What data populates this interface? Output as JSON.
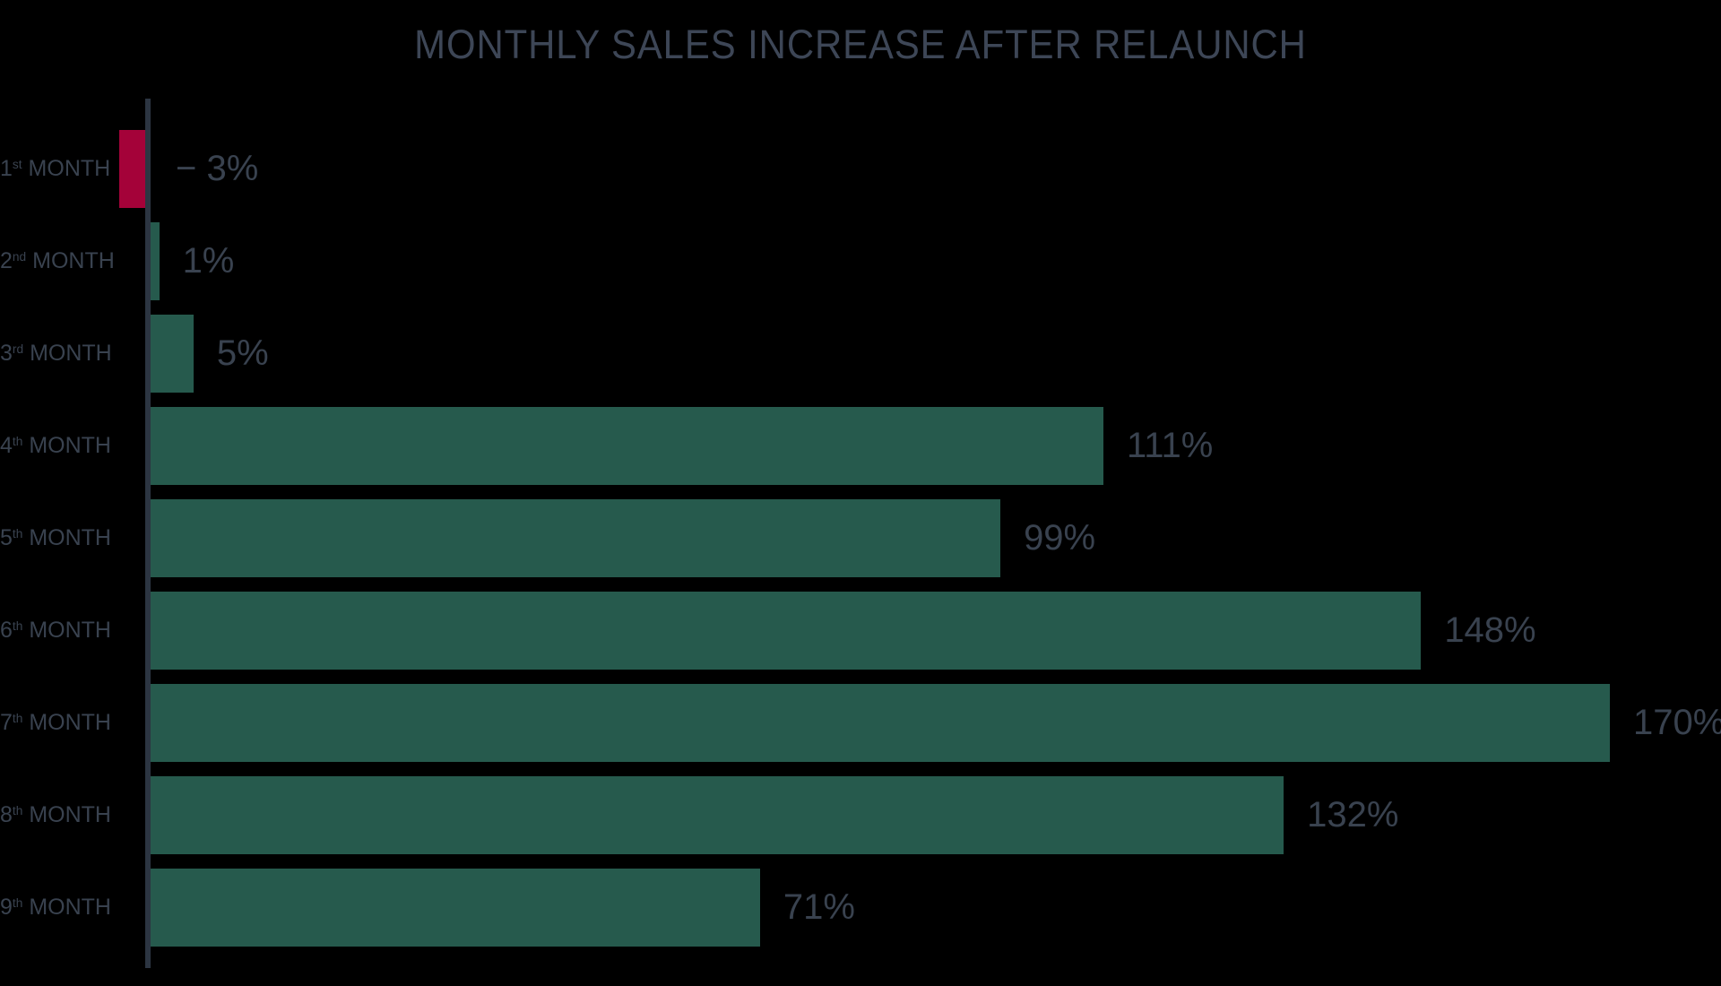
{
  "title": "MONTHLY SALES INCREASE AFTER RELAUNCH",
  "colors": {
    "background": "#000000",
    "bar_positive": "#265a4d",
    "bar_negative": "#a40239",
    "text": "#39424f",
    "title_text": "#3d4656",
    "axis": "#2c3542"
  },
  "chart_data": {
    "type": "bar",
    "orientation": "horizontal",
    "title": "MONTHLY SALES INCREASE AFTER RELAUNCH",
    "categories": [
      "1st MONTH",
      "2nd MONTH",
      "3rd MONTH",
      "4th MONTH",
      "5th MONTH",
      "6th MONTH",
      "7th MONTH",
      "8th MONTH",
      "9th MONTH"
    ],
    "category_parts": [
      {
        "num": "1",
        "ord": "st",
        "word": " MONTH"
      },
      {
        "num": "2",
        "ord": "nd",
        "word": " MONTH"
      },
      {
        "num": "3",
        "ord": "rd",
        "word": " MONTH"
      },
      {
        "num": "4",
        "ord": "th",
        "word": " MONTH"
      },
      {
        "num": "5",
        "ord": "th",
        "word": " MONTH"
      },
      {
        "num": "6",
        "ord": "th",
        "word": " MONTH"
      },
      {
        "num": "7",
        "ord": "th",
        "word": " MONTH"
      },
      {
        "num": "8",
        "ord": "th",
        "word": " MONTH"
      },
      {
        "num": "9",
        "ord": "th",
        "word": " MONTH"
      }
    ],
    "values": [
      -3,
      1,
      5,
      111,
      99,
      148,
      170,
      132,
      71
    ],
    "value_labels": [
      "− 3%",
      "1%",
      "5%",
      "111%",
      "99%",
      "148%",
      "170%",
      "132%",
      "71%"
    ],
    "xlabel": "",
    "ylabel": "",
    "xlim": [
      -3,
      170
    ],
    "baseline": 0,
    "grid": false,
    "legend": false,
    "negative_color_meaning": "decline",
    "positive_color_meaning": "increase"
  }
}
